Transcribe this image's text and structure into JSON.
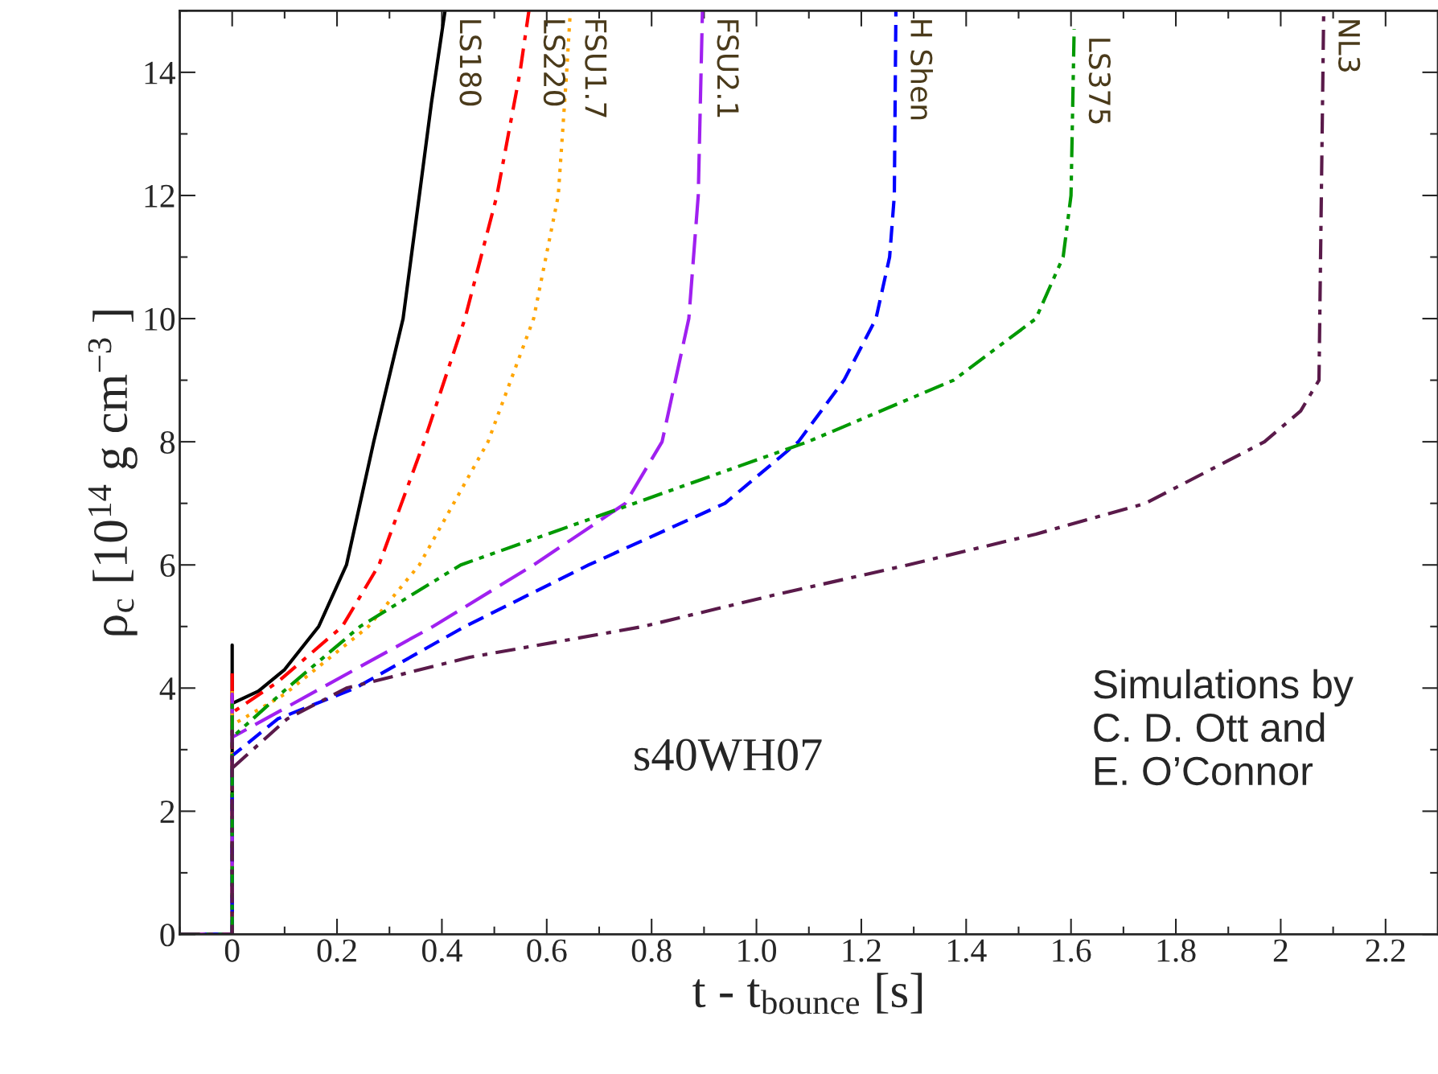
{
  "chart_data": {
    "type": "line",
    "xlabel": "t - t$_{bounce}$ [s]",
    "ylabel": "ρ$_{c}$ [10$^{14}$ g cm$^{−3}$ ]",
    "xlim": [
      -0.1,
      2.3
    ],
    "ylim": [
      0,
      15
    ],
    "xticks": [
      0,
      0.2,
      0.4,
      0.6,
      0.8,
      {
        "value": 1.0,
        "label": "1.0"
      },
      1.2,
      1.4,
      1.6,
      1.8,
      2,
      2.2
    ],
    "yticks": [
      0,
      2,
      4,
      6,
      8,
      10,
      12,
      14
    ],
    "grid": false,
    "legend": false,
    "series": [
      {
        "name": "LS180",
        "color": "#000000",
        "line_style": "solid",
        "x": [
          -0.1,
          0,
          0,
          0,
          0.05,
          0.1,
          0.165,
          0.218,
          0.27,
          0.326,
          0.357,
          0.38,
          0.406
        ],
        "values": [
          0,
          0,
          4.7,
          3.75,
          3.95,
          4.3,
          5,
          6,
          8,
          10,
          12,
          13.5,
          15
        ]
      },
      {
        "name": "LS220",
        "color": "#ff0000",
        "line_style": "dashdot",
        "x": [
          -0.1,
          0,
          0,
          0,
          0.087,
          0.21,
          0.28,
          0.366,
          0.444,
          0.505,
          0.549,
          0.566
        ],
        "values": [
          0,
          0,
          4.3,
          3.6,
          4.1,
          5,
          6,
          8,
          10,
          12,
          14,
          15
        ]
      },
      {
        "name": "FSU1.7",
        "color": "#ffa500",
        "line_style": "dotted",
        "x": [
          -0.1,
          0,
          0,
          0,
          0.1,
          0.26,
          0.357,
          0.488,
          0.575,
          0.622,
          0.638,
          0.645
        ],
        "values": [
          0,
          0,
          4.0,
          3.4,
          3.9,
          5,
          6,
          8,
          10,
          12,
          14,
          15
        ]
      },
      {
        "name": "FSU2.1",
        "color": "#a020f0",
        "line_style": "longdash",
        "x": [
          -0.1,
          0,
          0,
          0,
          0.17,
          0.383,
          0.575,
          0.75,
          0.82,
          0.871,
          0.889,
          0.897
        ],
        "values": [
          0,
          0,
          3.9,
          3.2,
          4,
          5,
          6,
          7,
          8,
          10,
          12,
          15
        ]
      },
      {
        "name": "H Shen",
        "color": "#0000ff",
        "line_style": "dashed",
        "x": [
          -0.1,
          0,
          0,
          0.087,
          0.235,
          0.444,
          0.68,
          0.94,
          1.08,
          1.167,
          1.228,
          1.254,
          1.263,
          1.266
        ],
        "values": [
          0,
          0,
          2.9,
          3.5,
          4,
          5,
          6,
          7,
          8,
          9,
          10,
          11,
          12,
          15
        ]
      },
      {
        "name": "LS375",
        "color": "#009900",
        "line_style": "dashdotdot",
        "x": [
          -0.1,
          0,
          0,
          0,
          0.105,
          0.244,
          0.436,
          0.767,
          1.098,
          1.376,
          1.533,
          1.585,
          1.6,
          1.606
        ],
        "values": [
          0,
          0,
          3.8,
          3.2,
          4,
          5,
          6,
          7,
          8,
          9,
          10,
          11,
          12,
          14.7
        ]
      },
      {
        "name": "NL3",
        "color": "#5a1a4a",
        "line_style": "dashdot",
        "x": [
          -0.1,
          0,
          0,
          0,
          0.105,
          0.218,
          0.453,
          0.784,
          1.028,
          1.289,
          1.533,
          1.742,
          1.969,
          2.038,
          2.073,
          2.082
        ],
        "values": [
          0,
          0,
          3.3,
          2.7,
          3.5,
          4,
          4.5,
          5,
          5.5,
          6,
          6.5,
          7,
          8,
          8.5,
          9,
          15
        ]
      }
    ],
    "annotations": [
      "s40WH07",
      "Simulations by\nC. D. Ott and\nE. O’Connor"
    ]
  }
}
